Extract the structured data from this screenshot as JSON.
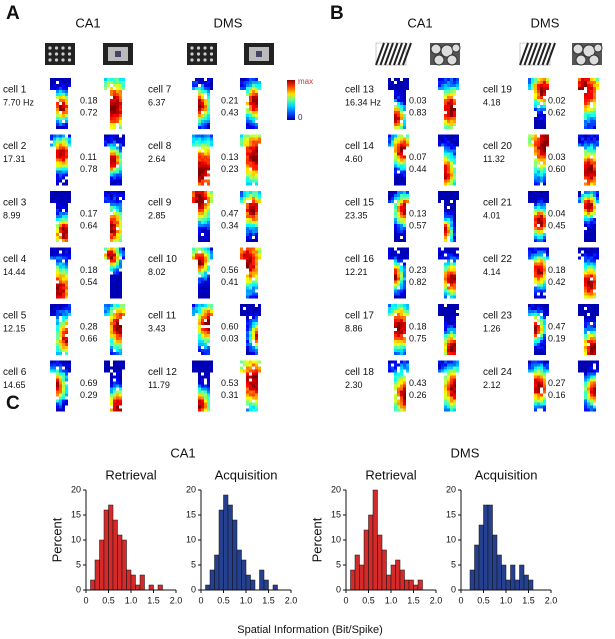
{
  "panel_a": {
    "label": "A",
    "colorbar": {
      "max": "max",
      "min": "0"
    },
    "columns": [
      {
        "title": "CA1",
        "cells": [
          {
            "name": "cell 1",
            "rate": "7.70 Hz",
            "values": [
              "0.18",
              "0.72"
            ]
          },
          {
            "name": "cell 2",
            "rate": "17.31",
            "values": [
              "0.11",
              "0.78"
            ]
          },
          {
            "name": "cell 3",
            "rate": "8.99",
            "values": [
              "0.17",
              "0.64"
            ]
          },
          {
            "name": "cell 4",
            "rate": "14.44",
            "values": [
              "0.18",
              "0.54"
            ]
          },
          {
            "name": "cell 5",
            "rate": "12.15",
            "values": [
              "0.28",
              "0.66"
            ]
          },
          {
            "name": "cell 6",
            "rate": "14.65",
            "values": [
              "0.69",
              "0.29"
            ]
          }
        ]
      },
      {
        "title": "DMS",
        "cells": [
          {
            "name": "cell 7",
            "rate": "6.37",
            "values": [
              "0.21",
              "0.43"
            ]
          },
          {
            "name": "cell 8",
            "rate": "2.64",
            "values": [
              "0.13",
              "0.23"
            ]
          },
          {
            "name": "cell 9",
            "rate": "2.85",
            "values": [
              "0.47",
              "0.34"
            ]
          },
          {
            "name": "cell 10",
            "rate": "8.02",
            "values": [
              "0.56",
              "0.41"
            ]
          },
          {
            "name": "cell 11",
            "rate": "3.43",
            "values": [
              "0.60",
              "0.03"
            ]
          },
          {
            "name": "cell 12",
            "rate": "11.79",
            "values": [
              "0.53",
              "0.31"
            ]
          }
        ]
      }
    ]
  },
  "panel_b": {
    "label": "B",
    "columns": [
      {
        "title": "CA1",
        "cells": [
          {
            "name": "cell 13",
            "rate": "16.34 Hz",
            "values": [
              "0.03",
              "0.83"
            ]
          },
          {
            "name": "cell 14",
            "rate": "4.60",
            "values": [
              "0.07",
              "0.44"
            ]
          },
          {
            "name": "cell 15",
            "rate": "23.35",
            "values": [
              "0.13",
              "0.57"
            ]
          },
          {
            "name": "cell 16",
            "rate": "12.21",
            "values": [
              "0.23",
              "0.82"
            ]
          },
          {
            "name": "cell 17",
            "rate": "8.86",
            "values": [
              "0.18",
              "0.75"
            ]
          },
          {
            "name": "cell 18",
            "rate": "2.30",
            "values": [
              "0.43",
              "0.26"
            ]
          }
        ]
      },
      {
        "title": "DMS",
        "cells": [
          {
            "name": "cell 19",
            "rate": "4.18",
            "values": [
              "0.02",
              "0.62"
            ]
          },
          {
            "name": "cell 20",
            "rate": "11.32",
            "values": [
              "0.03",
              "0.60"
            ]
          },
          {
            "name": "cell 21",
            "rate": "4.01",
            "values": [
              "0.04",
              "0.45"
            ]
          },
          {
            "name": "cell 22",
            "rate": "4.14",
            "values": [
              "0.18",
              "0.42"
            ]
          },
          {
            "name": "cell 23",
            "rate": "1.26",
            "values": [
              "0.47",
              "0.19"
            ]
          },
          {
            "name": "cell 24",
            "rate": "2.12",
            "values": [
              "0.27",
              "0.16"
            ]
          }
        ]
      }
    ]
  },
  "panel_c": {
    "label": "C",
    "groups": [
      "CA1",
      "DMS"
    ],
    "xlabel": "Spatial Information (Bit/Spike)"
  },
  "chart_data": [
    {
      "type": "histogram",
      "title": "Retrieval",
      "ylabel": "Percent",
      "color": "#d42a2a",
      "bins": [
        0,
        0.1,
        0.2,
        0.3,
        0.4,
        0.5,
        0.6,
        0.7,
        0.8,
        0.9,
        1.0,
        1.1,
        1.2,
        1.3,
        1.4,
        1.5,
        1.6,
        1.7,
        1.8,
        1.9,
        2.0
      ],
      "values": [
        0,
        2,
        6,
        10,
        16,
        17,
        14,
        11,
        10,
        4,
        3,
        1,
        3,
        0,
        1,
        0,
        1,
        0,
        0,
        0
      ],
      "xlim": [
        0,
        2
      ],
      "ylim": [
        0,
        20
      ],
      "xticks": [
        0,
        0.5,
        {
          "value": 1,
          "label": "1.0"
        },
        1.5,
        {
          "value": 2,
          "label": "2.0"
        }
      ],
      "yticks": [
        0,
        5,
        10,
        15,
        20
      ]
    },
    {
      "type": "histogram",
      "title": "Acquisition",
      "color": "#25408f",
      "bins": [
        0,
        0.1,
        0.2,
        0.3,
        0.4,
        0.5,
        0.6,
        0.7,
        0.8,
        0.9,
        1.0,
        1.1,
        1.2,
        1.3,
        1.4,
        1.5,
        1.6,
        1.7,
        1.8,
        1.9,
        2.0
      ],
      "values": [
        0,
        1,
        4,
        7,
        16,
        19,
        17,
        14,
        8,
        6,
        3,
        2,
        0,
        4,
        2,
        0,
        1,
        0,
        0,
        0
      ],
      "xlim": [
        0,
        2
      ],
      "ylim": [
        0,
        20
      ],
      "xticks": [
        0,
        0.5,
        {
          "value": 1,
          "label": "1.0"
        },
        1.5,
        {
          "value": 2,
          "label": "2.0"
        }
      ],
      "yticks": [
        0,
        5,
        10,
        15,
        20
      ]
    },
    {
      "type": "histogram",
      "title": "Retrieval",
      "ylabel": "Percent",
      "color": "#d42a2a",
      "bins": [
        0,
        0.1,
        0.2,
        0.3,
        0.4,
        0.5,
        0.6,
        0.7,
        0.8,
        0.9,
        1.0,
        1.1,
        1.2,
        1.3,
        1.4,
        1.5,
        1.6,
        1.7,
        1.8,
        1.9,
        2.0
      ],
      "values": [
        0,
        4,
        7,
        5,
        12,
        15,
        20,
        11,
        8,
        3,
        5,
        6,
        4,
        2,
        2,
        1,
        2,
        0,
        0,
        0
      ],
      "xlim": [
        0,
        2
      ],
      "ylim": [
        0,
        20
      ],
      "xticks": [
        0,
        0.5,
        {
          "value": 1,
          "label": "1.0"
        },
        1.5,
        {
          "value": 2,
          "label": "2.0"
        }
      ],
      "yticks": [
        0,
        5,
        10,
        15,
        20
      ]
    },
    {
      "type": "histogram",
      "title": "Acquisition",
      "color": "#25408f",
      "bins": [
        0,
        0.1,
        0.2,
        0.3,
        0.4,
        0.5,
        0.6,
        0.7,
        0.8,
        0.9,
        1.0,
        1.1,
        1.2,
        1.3,
        1.4,
        1.5,
        1.6,
        1.7,
        1.8,
        1.9,
        2.0
      ],
      "values": [
        0,
        0,
        4,
        9,
        13,
        17,
        17,
        11,
        7,
        5,
        2,
        5,
        2,
        5,
        3,
        2,
        0,
        0,
        0,
        0
      ],
      "xlim": [
        0,
        2
      ],
      "ylim": [
        0,
        20
      ],
      "xticks": [
        0,
        0.5,
        {
          "value": 1,
          "label": "1.0"
        },
        1.5,
        {
          "value": 2,
          "label": "2.0"
        }
      ],
      "yticks": [
        0,
        5,
        10,
        15,
        20
      ]
    }
  ]
}
